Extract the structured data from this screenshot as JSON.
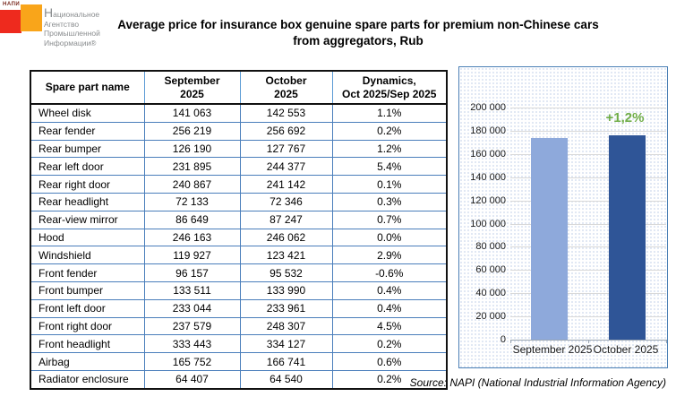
{
  "logo": {
    "mini_text": "НАПИ",
    "line1": "Национальное",
    "line2": "Агентство",
    "line3": "Промышленной",
    "line4": "Информации®",
    "red_color": "#ee2a1e",
    "orange_color": "#f9a51a"
  },
  "title": "Average price for insurance box genuine spare parts for premium non-Chinese cars\nfrom aggregators, Rub",
  "table": {
    "headers": [
      "Spare part name",
      "September\n2025",
      "October\n2025",
      "Dynamics,\nOct 2025/Sep 2025"
    ],
    "rows": [
      {
        "name": "Wheel disk",
        "sep2025": "141 063",
        "oct2025": "142 553",
        "dynamics": "1.1%"
      },
      {
        "name": "Rear fender",
        "sep2025": "256 219",
        "oct2025": "256 692",
        "dynamics": "0.2%"
      },
      {
        "name": "Rear bumper",
        "sep2025": "126 190",
        "oct2025": "127 767",
        "dynamics": "1.2%"
      },
      {
        "name": "Rear left door",
        "sep2025": "231 895",
        "oct2025": "244 377",
        "dynamics": "5.4%"
      },
      {
        "name": "Rear right door",
        "sep2025": "240 867",
        "oct2025": "241 142",
        "dynamics": "0.1%"
      },
      {
        "name": "Rear headlight",
        "sep2025": "72 133",
        "oct2025": "72 346",
        "dynamics": "0.3%"
      },
      {
        "name": "Rear-view mirror",
        "sep2025": "86 649",
        "oct2025": "87 247",
        "dynamics": "0.7%"
      },
      {
        "name": "Hood",
        "sep2025": "246 163",
        "oct2025": "246 062",
        "dynamics": "0.0%"
      },
      {
        "name": "Windshield",
        "sep2025": "119 927",
        "oct2025": "123 421",
        "dynamics": "2.9%"
      },
      {
        "name": "Front fender",
        "sep2025": "96 157",
        "oct2025": "95 532",
        "dynamics": "-0.6%"
      },
      {
        "name": "Front bumper",
        "sep2025": "133 511",
        "oct2025": "133 990",
        "dynamics": "0.4%"
      },
      {
        "name": "Front left door",
        "sep2025": "233 044",
        "oct2025": "233 961",
        "dynamics": "0.4%"
      },
      {
        "name": "Front right door",
        "sep2025": "237 579",
        "oct2025": "248 307",
        "dynamics": "4.5%"
      },
      {
        "name": "Front headlight",
        "sep2025": "333 443",
        "oct2025": "334 127",
        "dynamics": "0.2%"
      },
      {
        "name": "Airbag",
        "sep2025": "165 752",
        "oct2025": "166 741",
        "dynamics": "0.6%"
      },
      {
        "name": "Radiator enclosure",
        "sep2025": "64 407",
        "oct2025": "64 540",
        "dynamics": "0.2%"
      }
    ]
  },
  "chart_data": {
    "type": "bar",
    "title": "Average price for insurance box genuine spare parts for premium non-Chinese cars from aggregators, Rub",
    "categories": [
      "September 2025",
      "October 2025"
    ],
    "values": [
      174062,
      176175
    ],
    "bar_colors": [
      "#8EA9DB",
      "#2F5597"
    ],
    "annotation": "+1,2%",
    "annotation_color": "#70AD47",
    "annotation_target": "October 2025",
    "xlabel": "",
    "ylabel": "",
    "ylim": [
      0,
      200000
    ],
    "ytick_step": 20000,
    "ytick_labels": [
      "200 000",
      "180 000",
      "160 000",
      "140 000",
      "120 000",
      "100 000",
      "80 000",
      "60 000",
      "40 000",
      "20 000",
      "0"
    ],
    "grid": true,
    "legend": "none"
  },
  "source": "Source: NAPI (National Industrial Information Agency)"
}
